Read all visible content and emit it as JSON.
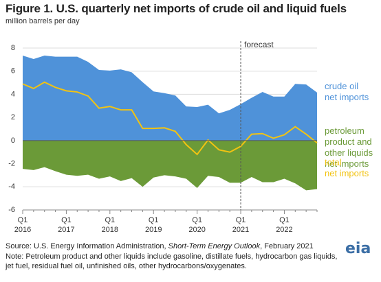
{
  "chart_data": {
    "type": "area",
    "title": "Figure 1. U.S. quarterly net imports of crude oil and liquid fuels",
    "subtitle": "million barrels per day",
    "categories": [
      "Q1\n2016",
      null,
      null,
      null,
      "Q1\n2017",
      null,
      null,
      null,
      "Q1\n2018",
      null,
      null,
      null,
      "Q1\n2019",
      null,
      null,
      null,
      "Q1\n2020",
      null,
      null,
      null,
      "Q1\n2021",
      null,
      null,
      null,
      "Q1\n2022",
      null,
      null,
      null
    ],
    "series": [
      {
        "name": "crude oil\nnet imports",
        "color": "#4f92d9",
        "kind": "area",
        "values": [
          7.35,
          7.05,
          7.35,
          7.25,
          7.25,
          7.25,
          6.8,
          6.1,
          6.05,
          6.15,
          5.9,
          5.05,
          4.25,
          4.1,
          3.9,
          2.95,
          2.9,
          3.1,
          2.35,
          2.65,
          3.15,
          3.7,
          4.2,
          3.8,
          3.8,
          4.9,
          4.85,
          4.15
        ]
      },
      {
        "name": "petroleum\nproduct and\nother liquids\nnet imports",
        "color": "#6b9a38",
        "kind": "area",
        "values": [
          -2.45,
          -2.55,
          -2.3,
          -2.65,
          -2.95,
          -3.05,
          -2.95,
          -3.3,
          -3.1,
          -3.5,
          -3.25,
          -4.0,
          -3.2,
          -3.0,
          -3.1,
          -3.3,
          -4.1,
          -3.05,
          -3.15,
          -3.65,
          -3.65,
          -3.15,
          -3.6,
          -3.6,
          -3.3,
          -3.7,
          -4.3,
          -4.2
        ]
      },
      {
        "name": "total\nnet imports",
        "color": "#f2c312",
        "kind": "line",
        "values": [
          4.9,
          4.5,
          5.05,
          4.6,
          4.3,
          4.2,
          3.85,
          2.8,
          2.95,
          2.65,
          2.65,
          1.05,
          1.05,
          1.1,
          0.8,
          -0.35,
          -1.2,
          0.05,
          -0.8,
          -1.0,
          -0.5,
          0.55,
          0.6,
          0.2,
          0.5,
          1.2,
          0.55,
          -0.2
        ]
      }
    ],
    "ylim": [
      -6,
      8
    ],
    "yticks": [
      -6,
      -4,
      -2,
      0,
      2,
      4,
      6,
      8
    ],
    "grid": true,
    "forecast": {
      "label": "forecast",
      "start": "Q1\n2021"
    },
    "source": [
      "Source: U.S. Energy Information Administration, ",
      "Short-Term Energy Outlook",
      ", February 2021"
    ],
    "note": "Note: Petroleum product and other liquids include gasoline, distillate fuels, hydrocarbon gas liquids, jet fuel, residual fuel oil, unfinished oils, other hydrocarbons/oxygenates.",
    "logo": "eia"
  }
}
